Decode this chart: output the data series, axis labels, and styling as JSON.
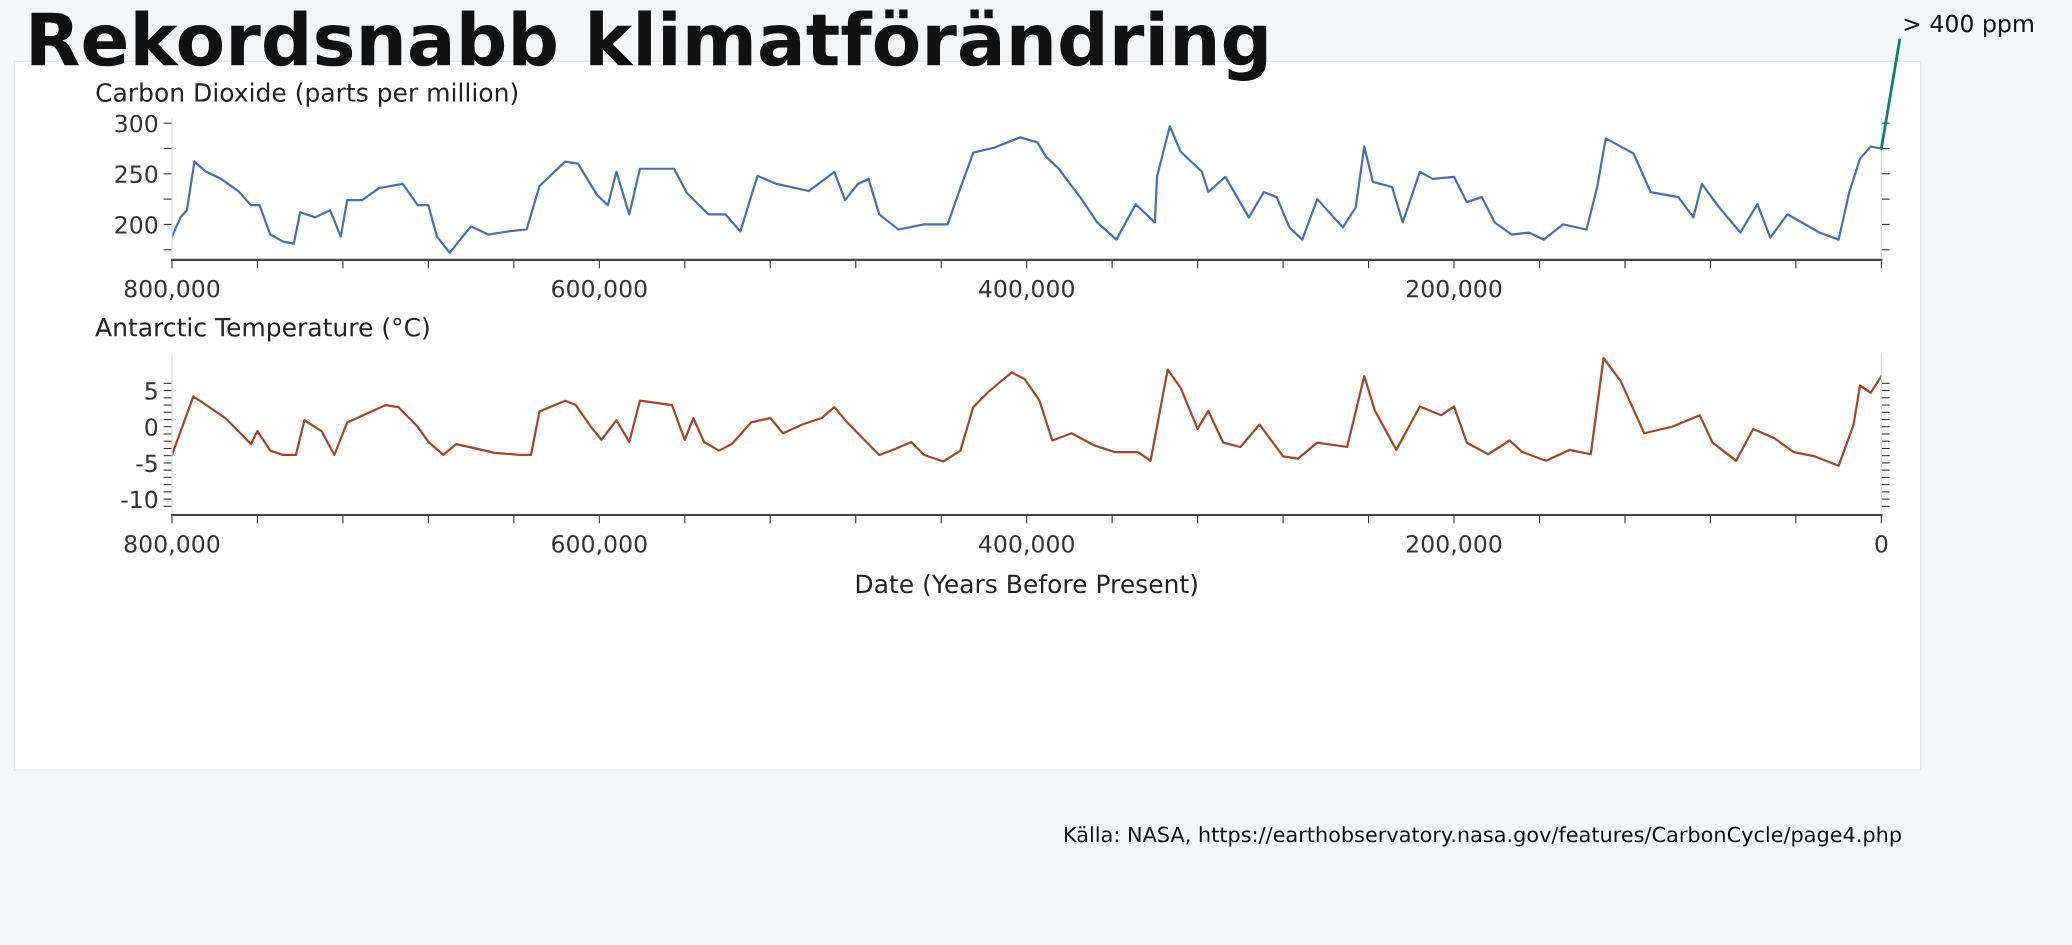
{
  "chart_data": [
    {
      "type": "line",
      "title": "Rekordsnabb klimatförändring",
      "ylabel": "Carbon Dioxide (parts per million)",
      "x": [
        800000,
        796000,
        793000,
        789500,
        784000,
        777000,
        769000,
        763000,
        759000,
        754000,
        748000,
        743000,
        740000,
        733000,
        726000,
        721000,
        718000,
        711000,
        703000,
        692000,
        685000,
        680000,
        676000,
        670000,
        664000,
        660000,
        652000,
        643000,
        634000,
        628000,
        616000,
        610000,
        601000,
        596000,
        592000,
        586000,
        581000,
        565000,
        559000,
        549000,
        541000,
        534000,
        526000,
        517000,
        502000,
        490000,
        485000,
        479000,
        474000,
        469000,
        460000,
        448000,
        437000,
        431000,
        425000,
        415000,
        403000,
        395000,
        391000,
        385000,
        375000,
        367000,
        358000,
        349000,
        340000,
        339000,
        333000,
        328000,
        318000,
        315000,
        307000,
        296000,
        289000,
        283000,
        277000,
        271000,
        264000,
        252000,
        246000,
        242000,
        238000,
        229000,
        224000,
        216000,
        210000,
        200000,
        194000,
        187000,
        181000,
        173000,
        165000,
        158000,
        149000,
        138000,
        133000,
        129000,
        116000,
        108000,
        95000,
        88000,
        84000,
        76000,
        66000,
        58000,
        52000,
        44000,
        29000,
        20000,
        15000,
        10000,
        5000,
        0
      ],
      "series": [
        {
          "color": "#4a6fb0",
          "values": [
            188,
            207,
            214,
            262,
            252,
            245,
            233,
            219,
            219,
            190,
            183,
            181,
            212,
            207,
            214,
            188,
            224,
            224,
            236,
            240,
            219,
            219,
            188,
            172,
            188,
            198,
            190,
            193,
            195,
            238,
            262,
            260,
            229,
            219,
            252,
            210,
            255,
            255,
            231,
            210,
            210,
            193,
            248,
            240,
            233,
            252,
            224,
            240,
            245,
            210,
            195,
            200,
            200,
            236,
            271,
            276,
            286,
            281,
            267,
            255,
            227,
            202,
            185,
            220,
            202,
            247,
            297,
            272,
            252,
            232,
            247,
            207,
            232,
            227,
            197,
            185,
            225,
            197,
            217,
            277,
            242,
            237,
            202,
            252,
            245,
            247,
            222,
            227,
            202,
            190,
            192,
            185,
            200,
            195,
            237,
            285,
            270,
            232,
            227,
            207,
            240,
            217,
            192,
            220,
            187,
            210,
            192,
            185,
            232,
            265,
            277,
            275
          ]
        }
      ],
      "xlim": [
        800000,
        0
      ],
      "xticks": [
        {
          "value": 800000,
          "label": "800,000"
        },
        {
          "value": 760000,
          "label": null
        },
        {
          "value": 720000,
          "label": null
        },
        {
          "value": 680000,
          "label": null
        },
        {
          "value": 640000,
          "label": null
        },
        {
          "value": 600000,
          "label": "600,000"
        },
        {
          "value": 560000,
          "label": null
        },
        {
          "value": 520000,
          "label": null
        },
        {
          "value": 480000,
          "label": null
        },
        {
          "value": 440000,
          "label": null
        },
        {
          "value": 400000,
          "label": "400,000"
        },
        {
          "value": 360000,
          "label": null
        },
        {
          "value": 320000,
          "label": null
        },
        {
          "value": 280000,
          "label": null
        },
        {
          "value": 240000,
          "label": null
        },
        {
          "value": 200000,
          "label": "200,000"
        },
        {
          "value": 160000,
          "label": null
        },
        {
          "value": 120000,
          "label": null
        },
        {
          "value": 80000,
          "label": null
        },
        {
          "value": 40000,
          "label": null
        },
        {
          "value": 0,
          "label": null
        }
      ],
      "ylim": [
        165,
        305
      ],
      "yticks": [
        {
          "value": 175,
          "label": null
        },
        200,
        {
          "value": 225,
          "label": null
        },
        250,
        {
          "value": 275,
          "label": null
        },
        300
      ],
      "annotations": [
        {
          "text": "> 400 ppm",
          "x": 0,
          "y": 275
        }
      ],
      "grid": false,
      "legend": false
    },
    {
      "type": "line",
      "ylabel": "Antarctic Temperature (°C)",
      "xlabel": "Date (Years Before Present)",
      "x": [
        800000,
        790000,
        781000,
        775000,
        769000,
        763000,
        760000,
        754000,
        748000,
        742000,
        738000,
        730000,
        724000,
        718000,
        709000,
        700000,
        694000,
        685000,
        680000,
        673000,
        667000,
        658000,
        649000,
        637000,
        632000,
        628000,
        616000,
        611000,
        604000,
        599000,
        592000,
        586000,
        581000,
        566000,
        560000,
        556000,
        551000,
        544000,
        538000,
        529000,
        520000,
        514000,
        505000,
        496000,
        490000,
        484000,
        479000,
        475000,
        469000,
        461000,
        454000,
        448000,
        439000,
        431000,
        425000,
        418000,
        407000,
        401000,
        394000,
        388000,
        379000,
        369000,
        359000,
        348000,
        342000,
        334000,
        328000,
        320000,
        315000,
        308000,
        300000,
        291000,
        280000,
        273000,
        264000,
        250000,
        242000,
        237000,
        227000,
        216000,
        206000,
        200000,
        194000,
        184000,
        174000,
        168000,
        157000,
        146000,
        136000,
        130000,
        122000,
        111000,
        98000,
        85000,
        79000,
        68000,
        60000,
        50000,
        41000,
        31000,
        20000,
        13000,
        10000,
        5000,
        0
      ],
      "series": [
        {
          "color": "#a0472c",
          "values": [
            -3.9,
            4.2,
            2.4,
            1.2,
            -0.6,
            -2.4,
            -0.6,
            -3.3,
            -3.9,
            -3.9,
            0.9,
            -0.6,
            -3.9,
            0.6,
            1.8,
            3.0,
            2.7,
            0,
            -2.1,
            -3.9,
            -2.4,
            -3.0,
            -3.6,
            -3.9,
            -3.9,
            2.1,
            3.6,
            3.0,
            0,
            -1.8,
            0.9,
            -2.1,
            3.6,
            3.0,
            -1.8,
            1.2,
            -2.1,
            -3.3,
            -2.4,
            0.6,
            1.2,
            -0.9,
            0.3,
            1.2,
            2.7,
            0.6,
            -0.9,
            -2.1,
            -3.9,
            -3.0,
            -2.1,
            -3.9,
            -4.8,
            -3.3,
            2.7,
            4.8,
            7.5,
            6.6,
            3.6,
            -1.9,
            -0.9,
            -2.5,
            -3.5,
            -3.5,
            -4.7,
            7.9,
            5.4,
            -0.3,
            2.2,
            -2.2,
            -2.8,
            0.3,
            -4.1,
            -4.4,
            -2.2,
            -2.8,
            7.0,
            2.2,
            -3.2,
            2.8,
            1.6,
            2.8,
            -2.2,
            -3.8,
            -1.9,
            -3.5,
            -4.7,
            -3.2,
            -3.8,
            9.5,
            6.3,
            -0.9,
            0,
            1.6,
            -2.2,
            -4.7,
            -0.3,
            -1.6,
            -3.5,
            -4.1,
            -5.4,
            0.3,
            5.7,
            4.7,
            7.0
          ]
        }
      ],
      "xlim": [
        800000,
        0
      ],
      "xticks": [
        {
          "value": 800000,
          "label": "800,000"
        },
        {
          "value": 760000,
          "label": null
        },
        {
          "value": 720000,
          "label": null
        },
        {
          "value": 680000,
          "label": null
        },
        {
          "value": 640000,
          "label": null
        },
        {
          "value": 600000,
          "label": "600,000"
        },
        {
          "value": 560000,
          "label": null
        },
        {
          "value": 520000,
          "label": null
        },
        {
          "value": 480000,
          "label": null
        },
        {
          "value": 440000,
          "label": null
        },
        {
          "value": 400000,
          "label": "400,000"
        },
        {
          "value": 360000,
          "label": null
        },
        {
          "value": 320000,
          "label": null
        },
        {
          "value": 280000,
          "label": null
        },
        {
          "value": 240000,
          "label": null
        },
        {
          "value": 200000,
          "label": "200,000"
        },
        {
          "value": 160000,
          "label": null
        },
        {
          "value": 120000,
          "label": null
        },
        {
          "value": 80000,
          "label": null
        },
        {
          "value": 40000,
          "label": null
        },
        0
      ],
      "ylim": [
        -12.2,
        10
      ],
      "yticks": [
        {
          "value": -11,
          "label": null
        },
        -10,
        {
          "value": -9,
          "label": null
        },
        {
          "value": -8,
          "label": null
        },
        {
          "value": -7,
          "label": null
        },
        {
          "value": -6,
          "label": null
        },
        -5,
        {
          "value": -4,
          "label": null
        },
        {
          "value": -3,
          "label": null
        },
        {
          "value": -2,
          "label": null
        },
        {
          "value": -1,
          "label": null
        },
        0,
        {
          "value": 1,
          "label": null
        },
        {
          "value": 2,
          "label": null
        },
        {
          "value": 3,
          "label": null
        },
        {
          "value": 4,
          "label": null
        },
        5,
        {
          "value": 6,
          "label": null
        }
      ],
      "annotations": [
        "Källa: NASA, https://earthobservatory.nasa.gov/features/CarbonCycle/page4.php"
      ],
      "grid": false,
      "legend": false
    }
  ]
}
